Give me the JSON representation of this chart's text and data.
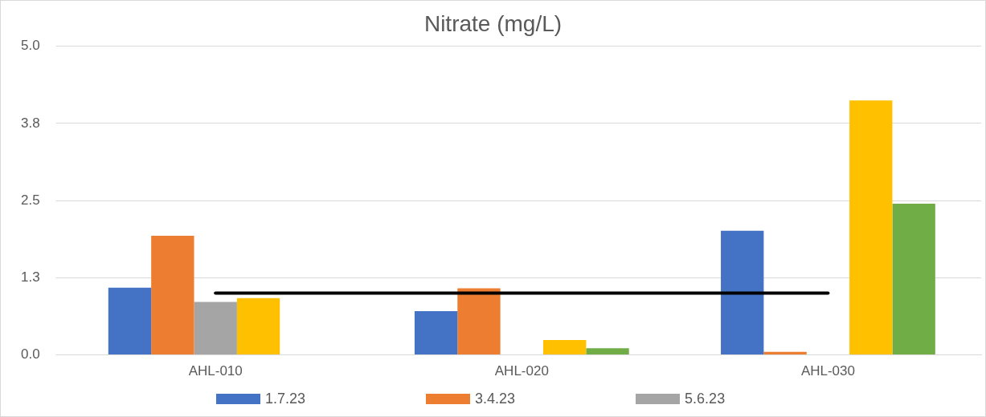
{
  "chart_data": {
    "type": "bar",
    "title": "Nitrate (mg/L)",
    "categories": [
      "AHL-010",
      "AHL-020",
      "AHL-030"
    ],
    "series": [
      {
        "name": "1.7.23",
        "color": "#4472c4",
        "values": [
          1.09,
          0.71,
          2.01
        ]
      },
      {
        "name": "3.4.23",
        "color": "#ed7d31",
        "values": [
          1.93,
          1.08,
          0.05
        ]
      },
      {
        "name": "5.6.23",
        "color": "#a5a5a5",
        "values": [
          0.86,
          null,
          null
        ]
      },
      {
        "color": "#ffc000",
        "values": [
          0.92,
          0.24,
          4.12
        ]
      },
      {
        "color": "#70ad47",
        "values": [
          null,
          0.11,
          2.45
        ]
      },
      {
        "type": "line",
        "color": "#000000",
        "values": [
          1.0,
          1.0,
          1.0
        ]
      }
    ],
    "ylim": [
      0,
      5
    ],
    "yticks": [
      {
        "value": 0,
        "label": "0.0"
      },
      {
        "value": 1.25,
        "label": "1.3"
      },
      2.5,
      {
        "value": 3.75,
        "label": "3.8"
      },
      {
        "value": 5,
        "label": "5.0"
      }
    ],
    "grid": "y",
    "legend": "bottom"
  }
}
